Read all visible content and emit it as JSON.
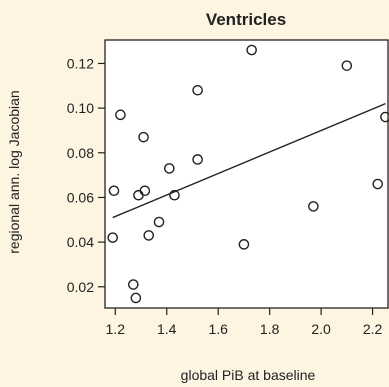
{
  "chart_data": {
    "type": "scatter",
    "title": "Ventricles",
    "xlabel": "global PiB at baseline",
    "ylabel": "regional ann. log Jacobian",
    "xlim": [
      1.16,
      2.26
    ],
    "ylim": [
      0.0105,
      0.1305
    ],
    "xticks": [
      "1.2",
      "1.4",
      "1.6",
      "1.8",
      "2.0",
      "2.2"
    ],
    "yticks": [
      "0.02",
      "0.04",
      "0.06",
      "0.08",
      "0.10",
      "0.12"
    ],
    "grid": false,
    "background": "#fdf5e1",
    "plot_background": "#ffffff",
    "mark_color": "#222222",
    "points": [
      {
        "x": 1.19,
        "y": 0.042
      },
      {
        "x": 1.195,
        "y": 0.063
      },
      {
        "x": 1.22,
        "y": 0.097
      },
      {
        "x": 1.27,
        "y": 0.021
      },
      {
        "x": 1.28,
        "y": 0.015
      },
      {
        "x": 1.29,
        "y": 0.061
      },
      {
        "x": 1.31,
        "y": 0.087
      },
      {
        "x": 1.315,
        "y": 0.063
      },
      {
        "x": 1.33,
        "y": 0.043
      },
      {
        "x": 1.37,
        "y": 0.049
      },
      {
        "x": 1.41,
        "y": 0.073
      },
      {
        "x": 1.43,
        "y": 0.061
      },
      {
        "x": 1.52,
        "y": 0.108
      },
      {
        "x": 1.52,
        "y": 0.077
      },
      {
        "x": 1.7,
        "y": 0.039
      },
      {
        "x": 1.73,
        "y": 0.126
      },
      {
        "x": 1.97,
        "y": 0.056
      },
      {
        "x": 2.1,
        "y": 0.119
      },
      {
        "x": 2.22,
        "y": 0.066
      },
      {
        "x": 2.25,
        "y": 0.096
      }
    ],
    "regression_line": {
      "x": [
        1.19,
        2.25
      ],
      "y": [
        0.051,
        0.102
      ]
    }
  }
}
